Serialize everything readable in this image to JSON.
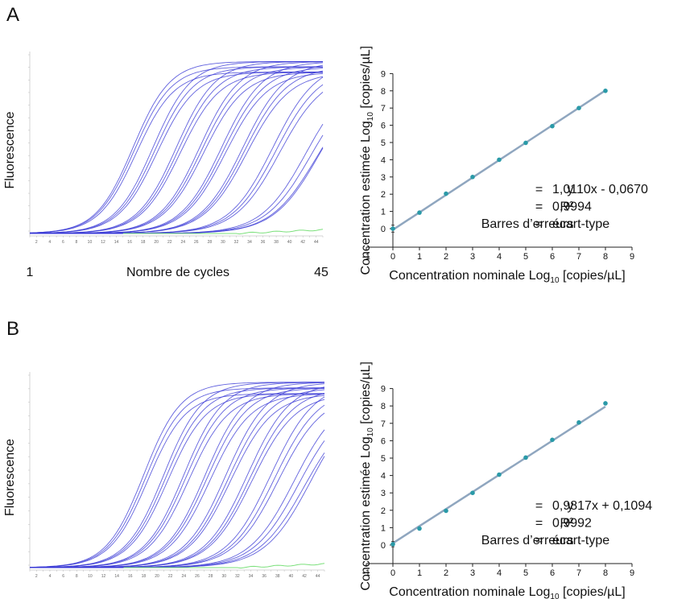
{
  "panels": [
    {
      "letter": "A",
      "amplification": {
        "ylabel": "Fluorescence",
        "xlabel": "Nombre de cycles",
        "x_start_label": "1",
        "x_end_label": "45",
        "cycles": [
          1,
          45
        ],
        "curve_color": "#3a3ad6",
        "negative_control_color": "#7be07b",
        "ct_values": [
          12.5,
          12.7,
          13.0,
          15.5,
          15.8,
          16.1,
          19.0,
          19.3,
          19.6,
          22.5,
          22.8,
          23.1,
          25.8,
          26.1,
          26.4,
          29.0,
          29.3,
          29.6,
          33.5,
          34.0,
          34.5,
          38.5,
          39.2,
          40.0,
          40.6
        ]
      },
      "chart_data": {
        "type": "scatter",
        "xlabel": "Concentration nominale Log",
        "xlabel_sub": "10",
        "xlabel_unit": " [copies/µL]",
        "ylabel": "Concentration estimée Log",
        "ylabel_sub": "10",
        "ylabel_unit": " [copies/µL]",
        "xlim": [
          -1,
          9
        ],
        "ylim": [
          0,
          9
        ],
        "xticks": [
          -1,
          0,
          1,
          2,
          3,
          4,
          5,
          6,
          7,
          8,
          9
        ],
        "yticks": [
          0,
          1,
          2,
          3,
          4,
          5,
          6,
          7,
          8,
          9
        ],
        "x": [
          0,
          1,
          2,
          3,
          4,
          5,
          6,
          7,
          8
        ],
        "y": [
          0.0,
          0.93,
          2.03,
          3.0,
          4.0,
          4.98,
          5.95,
          7.0,
          8.0
        ],
        "y_err": [
          0.2,
          0.05,
          0.05,
          0.05,
          0.05,
          0.05,
          0.05,
          0.05,
          0.05
        ],
        "fit": {
          "slope": 1.011,
          "intercept": -0.067
        },
        "point_color": "#2a9aa8",
        "line_color": "#8fa6bf",
        "stats": [
          {
            "key": "y",
            "eq": "=",
            "val": "1,0110x - 0,0670"
          },
          {
            "key": "R²",
            "eq": "=",
            "val": "0,9994"
          },
          {
            "key": "Barres d’erreurs",
            "eq": "=",
            "val": "écart-type"
          }
        ]
      }
    },
    {
      "letter": "B",
      "amplification": {
        "ylabel": "Fluorescence",
        "xlabel": "Nombre de cycles",
        "x_start_label": "1",
        "x_end_label": "45",
        "cycles": [
          1,
          45
        ],
        "curve_color": "#3a3ad6",
        "negative_control_color": "#7be07b",
        "ct_values": [
          14.0,
          14.3,
          14.6,
          17.0,
          17.3,
          17.6,
          20.0,
          20.3,
          20.7,
          23.2,
          23.5,
          23.9,
          26.3,
          26.7,
          27.0,
          29.5,
          29.9,
          30.2,
          33.0,
          33.6,
          34.1,
          36.5,
          37.2,
          38.0,
          39.0
        ]
      },
      "chart_data": {
        "type": "scatter",
        "xlabel": "Concentration nominale Log",
        "xlabel_sub": "10",
        "xlabel_unit": " [copies/µL]",
        "ylabel": "Concentration estimée Log",
        "ylabel_sub": "10",
        "ylabel_unit": " [copies/µL]",
        "xlim": [
          -1,
          9
        ],
        "ylim": [
          0,
          9
        ],
        "xticks": [
          -1,
          0,
          1,
          2,
          3,
          4,
          5,
          6,
          7,
          8,
          9
        ],
        "yticks": [
          0,
          1,
          2,
          3,
          4,
          5,
          6,
          7,
          8,
          9
        ],
        "x": [
          0,
          1,
          2,
          3,
          4,
          5,
          6,
          7,
          8
        ],
        "y": [
          0.05,
          0.95,
          1.97,
          3.0,
          4.05,
          5.03,
          6.05,
          7.05,
          8.15
        ],
        "y_err": [
          0.15,
          0.05,
          0.05,
          0.05,
          0.05,
          0.05,
          0.05,
          0.05,
          0.05
        ],
        "fit": {
          "slope": 0.9817,
          "intercept": 0.1094
        },
        "point_color": "#2a9aa8",
        "line_color": "#8fa6bf",
        "stats": [
          {
            "key": "y",
            "eq": "=",
            "val": "0,9817x + 0,1094"
          },
          {
            "key": "R²",
            "eq": "=",
            "val": "0,9992"
          },
          {
            "key": "Barres d’erreurs",
            "eq": "=",
            "val": "écart-type"
          }
        ]
      }
    }
  ]
}
